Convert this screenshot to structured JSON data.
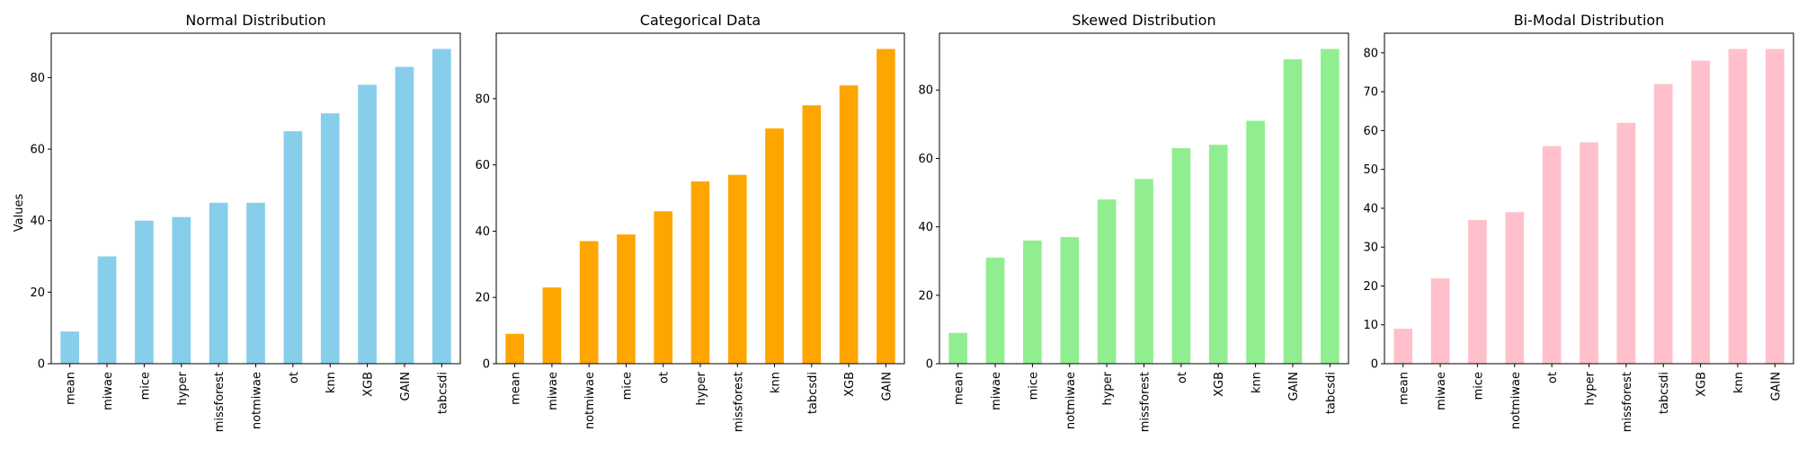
{
  "figure": {
    "ylabel": "Values"
  },
  "chart_data": [
    {
      "type": "bar",
      "title": "Normal Distribution",
      "xlabel": "",
      "ylabel": "Values",
      "color": "#87CEEB",
      "categories": [
        "mean",
        "miwae",
        "mice",
        "hyper",
        "missforest",
        "notmiwae",
        "ot",
        "knn",
        "XGB",
        "GAIN",
        "tabcsdi"
      ],
      "values": [
        9,
        30,
        40,
        41,
        45,
        45,
        65,
        70,
        78,
        83,
        88
      ],
      "ylim": [
        0,
        92.4
      ],
      "yticks": [
        0,
        20,
        40,
        60,
        80
      ],
      "grid": false
    },
    {
      "type": "bar",
      "title": "Categorical Data",
      "xlabel": "",
      "ylabel": "",
      "color": "#FFA500",
      "categories": [
        "mean",
        "miwae",
        "notmiwae",
        "mice",
        "ot",
        "hyper",
        "missforest",
        "knn",
        "tabcsdi",
        "XGB",
        "GAIN"
      ],
      "values": [
        9,
        23,
        37,
        39,
        46,
        55,
        57,
        71,
        78,
        84,
        95
      ],
      "ylim": [
        0,
        99.75
      ],
      "yticks": [
        0,
        20,
        40,
        60,
        80
      ],
      "grid": false
    },
    {
      "type": "bar",
      "title": "Skewed Distribution",
      "xlabel": "",
      "ylabel": "",
      "color": "#90EE90",
      "categories": [
        "mean",
        "miwae",
        "mice",
        "notmiwae",
        "hyper",
        "missforest",
        "ot",
        "XGB",
        "knn",
        "GAIN",
        "tabcsdi"
      ],
      "values": [
        9,
        31,
        36,
        37,
        48,
        54,
        63,
        64,
        71,
        89,
        92
      ],
      "ylim": [
        0,
        96.6
      ],
      "yticks": [
        0,
        20,
        40,
        60,
        80
      ],
      "grid": false
    },
    {
      "type": "bar",
      "title": "Bi-Modal Distribution",
      "xlabel": "",
      "ylabel": "",
      "color": "#FFC0CB",
      "categories": [
        "mean",
        "miwae",
        "mice",
        "notmiwae",
        "ot",
        "hyper",
        "missforest",
        "tabcsdi",
        "XGB",
        "knn",
        "GAIN"
      ],
      "values": [
        9,
        22,
        37,
        39,
        56,
        57,
        62,
        72,
        78,
        81,
        81
      ],
      "ylim": [
        0,
        85.05
      ],
      "yticks": [
        0,
        10,
        20,
        30,
        40,
        50,
        60,
        70,
        80
      ],
      "grid": false
    }
  ]
}
